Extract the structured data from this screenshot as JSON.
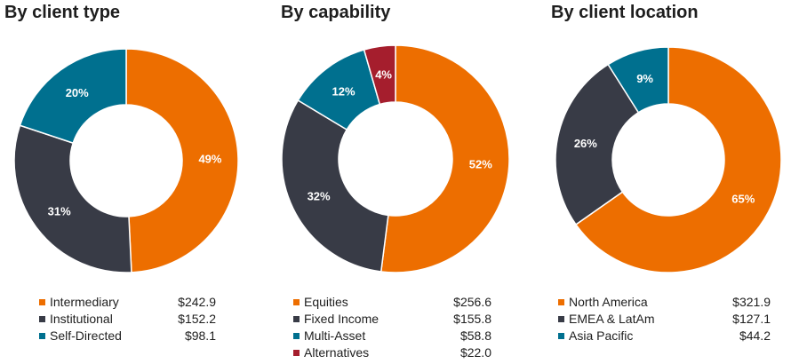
{
  "colors": {
    "orange": "#ED6E00",
    "dark_gray": "#383B46",
    "teal": "#00708F",
    "red": "#A51E2D"
  },
  "chart_data": [
    {
      "type": "pie",
      "donut": true,
      "title": "By client type",
      "series": [
        {
          "name": "Intermediary",
          "value": 242.9,
          "value_label": "$242.9",
          "percent_label": "49%",
          "color": "#ED6E00"
        },
        {
          "name": "Institutional",
          "value": 152.2,
          "value_label": "$152.2",
          "percent_label": "31%",
          "color": "#383B46"
        },
        {
          "name": "Self-Directed",
          "value": 98.1,
          "value_label": "$98.1",
          "percent_label": "20%",
          "color": "#00708F"
        }
      ],
      "legend_position": "bottom"
    },
    {
      "type": "pie",
      "donut": true,
      "title": "By capability",
      "series": [
        {
          "name": "Equities",
          "value": 256.6,
          "value_label": "$256.6",
          "percent_label": "52%",
          "color": "#ED6E00"
        },
        {
          "name": "Fixed Income",
          "value": 155.8,
          "value_label": "$155.8",
          "percent_label": "32%",
          "color": "#383B46"
        },
        {
          "name": "Multi-Asset",
          "value": 58.8,
          "value_label": "$58.8",
          "percent_label": "12%",
          "color": "#00708F"
        },
        {
          "name": "Alternatives",
          "value": 22.0,
          "value_label": "$22.0",
          "percent_label": "4%",
          "color": "#A51E2D"
        }
      ],
      "legend_position": "bottom"
    },
    {
      "type": "pie",
      "donut": true,
      "title": "By client location",
      "series": [
        {
          "name": "North America",
          "value": 321.9,
          "value_label": "$321.9",
          "percent_label": "65%",
          "color": "#ED6E00"
        },
        {
          "name": "EMEA & LatAm",
          "value": 127.1,
          "value_label": "$127.1",
          "percent_label": "26%",
          "color": "#383B46"
        },
        {
          "name": "Asia Pacific",
          "value": 44.2,
          "value_label": "$44.2",
          "percent_label": "9%",
          "color": "#00708F"
        }
      ],
      "legend_position": "bottom"
    }
  ]
}
